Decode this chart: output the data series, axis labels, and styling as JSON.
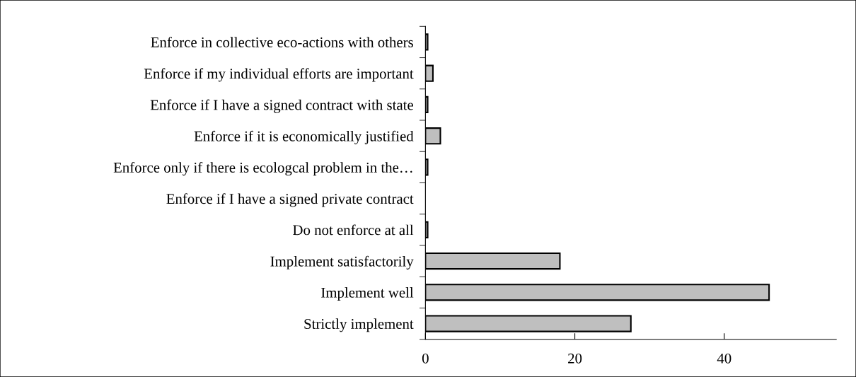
{
  "chart_data": {
    "type": "bar",
    "orientation": "horizontal",
    "categories": [
      "Enforce in collective eco-actions with others",
      "Enforce if my individual efforts are important",
      "Enforce if I have a signed contract with state",
      "Enforce if it is economically justified",
      "Enforce only if there is ecologcal problem in the…",
      "Enforce if I have a signed private contract",
      "Do not enforce at all",
      "Implement satisfactorily",
      "Implement well",
      "Strictly implement"
    ],
    "values": [
      0.3,
      1,
      0.3,
      2,
      0.3,
      null,
      0.3,
      18,
      46,
      27.5
    ],
    "color": "#bfbfbf",
    "xlim": [
      0,
      55
    ],
    "xticks": [
      0,
      20,
      40
    ],
    "grid": false,
    "legend": false
  }
}
